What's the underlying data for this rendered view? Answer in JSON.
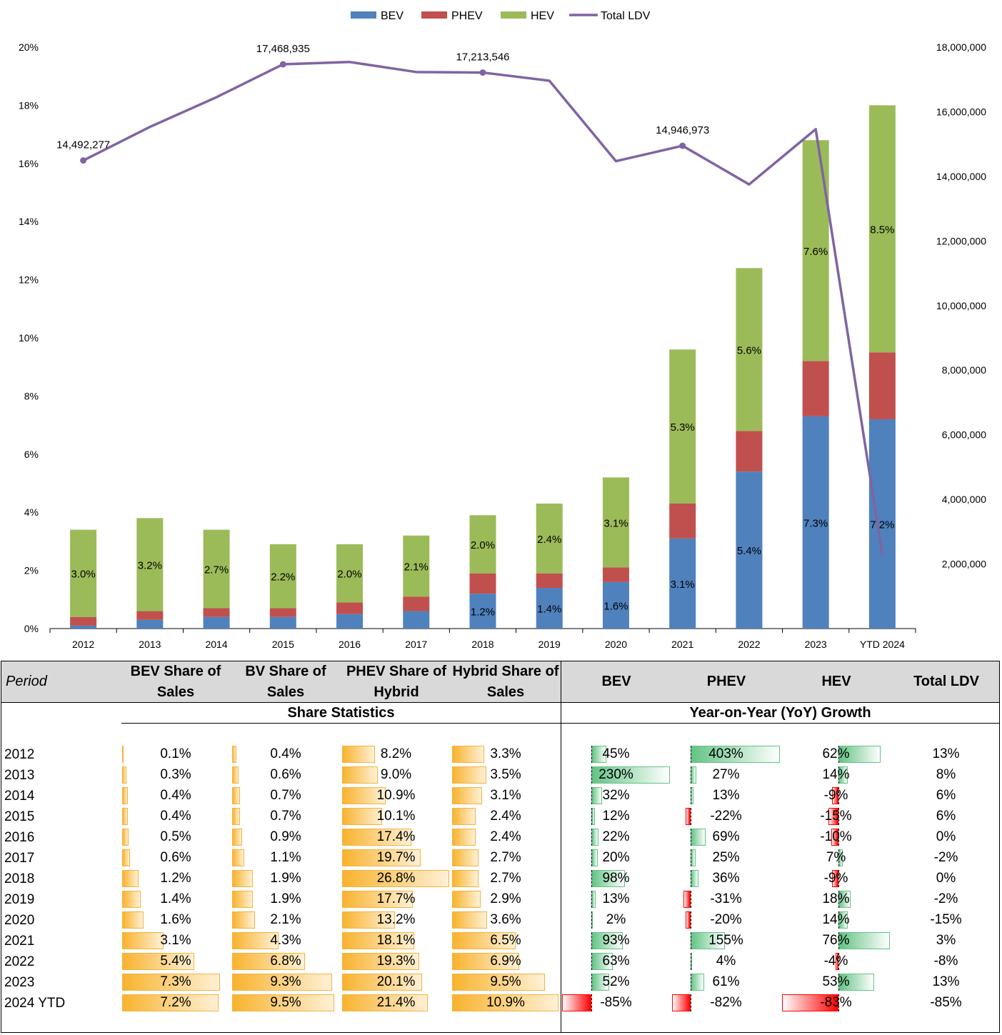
{
  "chart_data": {
    "type": "bar",
    "stacked": true,
    "categories": [
      "2012",
      "2013",
      "2014",
      "2015",
      "2016",
      "2017",
      "2018",
      "2019",
      "2020",
      "2021",
      "2022",
      "2023",
      "YTD 2024"
    ],
    "series": [
      {
        "name": "BEV",
        "color": "#4f81bd",
        "values": [
          0.1,
          0.3,
          0.4,
          0.4,
          0.5,
          0.6,
          1.2,
          1.4,
          1.6,
          3.1,
          5.4,
          7.3,
          7.2
        ],
        "labels": [
          "",
          "",
          "",
          "",
          "",
          "",
          "1.2%",
          "1.4%",
          "1.6%",
          "3.1%",
          "5.4%",
          "7.3%",
          "7.2%"
        ]
      },
      {
        "name": "PHEV",
        "color": "#c0504d",
        "values": [
          0.3,
          0.3,
          0.3,
          0.3,
          0.4,
          0.5,
          0.7,
          0.5,
          0.5,
          1.2,
          1.4,
          1.9,
          2.3
        ],
        "labels": [
          "",
          "",
          "",
          "",
          "",
          "",
          "",
          "",
          "",
          "",
          "",
          "",
          ""
        ]
      },
      {
        "name": "HEV",
        "color": "#9bbb59",
        "values": [
          3.0,
          3.2,
          2.7,
          2.2,
          2.0,
          2.1,
          2.0,
          2.4,
          3.1,
          5.3,
          5.6,
          7.6,
          8.5
        ],
        "labels": [
          "3.0%",
          "3.2%",
          "2.7%",
          "2.2%",
          "2.0%",
          "2.1%",
          "2.0%",
          "2.4%",
          "3.1%",
          "5.3%",
          "5.6%",
          "7.6%",
          "8.5%"
        ]
      }
    ],
    "line": {
      "name": "Total LDV",
      "color": "#8064a2",
      "values": [
        14492277,
        15530000,
        16450000,
        17468935,
        17540000,
        17230000,
        17213546,
        16960000,
        14470000,
        14946973,
        13750000,
        15460000,
        2290000
      ],
      "labels": [
        "14,492,277",
        "",
        "",
        "17,468,935",
        "",
        "",
        "17,213,546",
        "",
        "",
        "14,946,973",
        "",
        "",
        ""
      ]
    },
    "y_left": {
      "min": 0,
      "max": 20,
      "ticks": [
        "0%",
        "2%",
        "4%",
        "6%",
        "8%",
        "10%",
        "12%",
        "14%",
        "16%",
        "18%",
        "20%"
      ]
    },
    "y_right": {
      "min": 0,
      "max": 18000000,
      "ticks": [
        "2,000,000",
        "4,000,000",
        "6,000,000",
        "8,000,000",
        "10,000,000",
        "12,000,000",
        "14,000,000",
        "16,000,000",
        "18,000,000"
      ]
    },
    "legend": [
      "BEV",
      "PHEV",
      "HEV",
      "Total LDV"
    ],
    "legend_position": "top-center"
  },
  "table": {
    "headers": {
      "period": "Period",
      "bev_share": "BEV Share of Sales",
      "bv_share": "BV Share of Sales",
      "phev_share": "PHEV Share of Hybrid",
      "hybrid_share": "Hybrid Share of Sales",
      "bev": "BEV",
      "phev": "PHEV",
      "hev": "HEV",
      "total": "Total LDV"
    },
    "group_left": "Share Statistics",
    "group_right": "Year-on-Year (YoY) Growth",
    "share_max": [
      8.0,
      10.0,
      27.0,
      11.0
    ],
    "yoy_range": [
      [
        -85,
        230
      ],
      [
        -82,
        403
      ],
      [
        -83,
        76
      ]
    ],
    "rows": [
      {
        "period": "2012",
        "bev_share": "0.1%",
        "bv_share": "0.4%",
        "phev_share": "8.2%",
        "hybrid_share": "3.3%",
        "bev": "45%",
        "phev": "403%",
        "hev": "62%",
        "total": "13%"
      },
      {
        "period": "2013",
        "bev_share": "0.3%",
        "bv_share": "0.6%",
        "phev_share": "9.0%",
        "hybrid_share": "3.5%",
        "bev": "230%",
        "phev": "27%",
        "hev": "14%",
        "total": "8%"
      },
      {
        "period": "2014",
        "bev_share": "0.4%",
        "bv_share": "0.7%",
        "phev_share": "10.9%",
        "hybrid_share": "3.1%",
        "bev": "32%",
        "phev": "13%",
        "hev": "-9%",
        "total": "6%"
      },
      {
        "period": "2015",
        "bev_share": "0.4%",
        "bv_share": "0.7%",
        "phev_share": "10.1%",
        "hybrid_share": "2.4%",
        "bev": "12%",
        "phev": "-22%",
        "hev": "-15%",
        "total": "6%"
      },
      {
        "period": "2016",
        "bev_share": "0.5%",
        "bv_share": "0.9%",
        "phev_share": "17.4%",
        "hybrid_share": "2.4%",
        "bev": "22%",
        "phev": "69%",
        "hev": "-10%",
        "total": "0%"
      },
      {
        "period": "2017",
        "bev_share": "0.6%",
        "bv_share": "1.1%",
        "phev_share": "19.7%",
        "hybrid_share": "2.7%",
        "bev": "20%",
        "phev": "25%",
        "hev": "7%",
        "total": "-2%"
      },
      {
        "period": "2018",
        "bev_share": "1.2%",
        "bv_share": "1.9%",
        "phev_share": "26.8%",
        "hybrid_share": "2.7%",
        "bev": "98%",
        "phev": "36%",
        "hev": "-9%",
        "total": "0%"
      },
      {
        "period": "2019",
        "bev_share": "1.4%",
        "bv_share": "1.9%",
        "phev_share": "17.7%",
        "hybrid_share": "2.9%",
        "bev": "13%",
        "phev": "-31%",
        "hev": "18%",
        "total": "-2%"
      },
      {
        "period": "2020",
        "bev_share": "1.6%",
        "bv_share": "2.1%",
        "phev_share": "13.2%",
        "hybrid_share": "3.6%",
        "bev": "2%",
        "phev": "-20%",
        "hev": "14%",
        "total": "-15%"
      },
      {
        "period": "2021",
        "bev_share": "3.1%",
        "bv_share": "4.3%",
        "phev_share": "18.1%",
        "hybrid_share": "6.5%",
        "bev": "93%",
        "phev": "155%",
        "hev": "76%",
        "total": "3%"
      },
      {
        "period": "2022",
        "bev_share": "5.4%",
        "bv_share": "6.8%",
        "phev_share": "19.3%",
        "hybrid_share": "6.9%",
        "bev": "63%",
        "phev": "4%",
        "hev": "-4%",
        "total": "-8%"
      },
      {
        "period": "2023",
        "bev_share": "7.3%",
        "bv_share": "9.3%",
        "phev_share": "20.1%",
        "hybrid_share": "9.5%",
        "bev": "52%",
        "phev": "61%",
        "hev": "53%",
        "total": "13%"
      },
      {
        "period": "2024 YTD",
        "bev_share": "7.2%",
        "bv_share": "9.5%",
        "phev_share": "21.4%",
        "hybrid_share": "10.9%",
        "bev": "-85%",
        "phev": "-82%",
        "hev": "-83%",
        "total": "-85%"
      }
    ]
  }
}
